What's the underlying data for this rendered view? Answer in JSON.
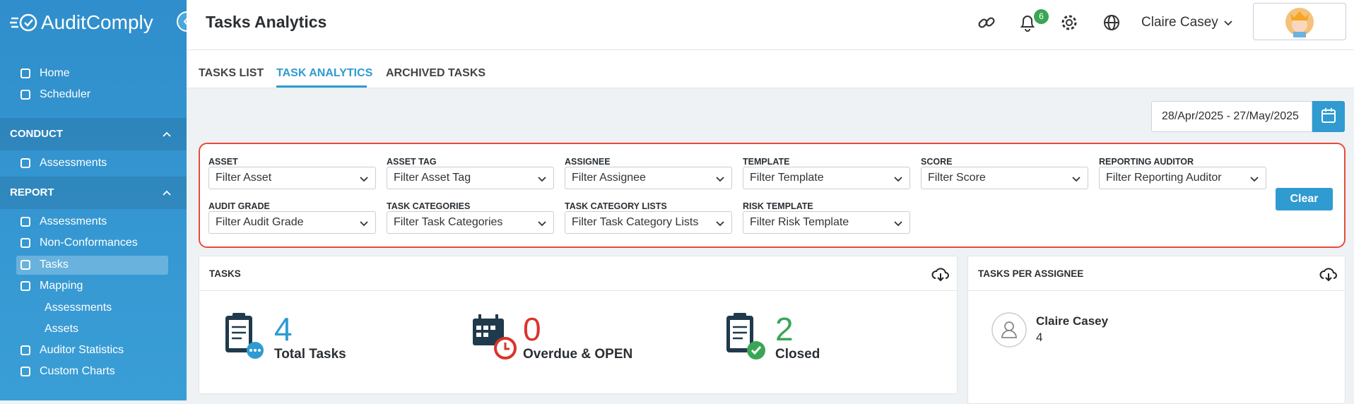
{
  "sidebar": {
    "brand": "AuditComply",
    "top": [
      "Home",
      "Scheduler"
    ],
    "sections": [
      {
        "title": "CONDUCT",
        "items": [
          {
            "label": "Assessments"
          }
        ]
      },
      {
        "title": "REPORT",
        "items": [
          {
            "label": "Assessments"
          },
          {
            "label": "Non-Conformances"
          },
          {
            "label": "Tasks"
          },
          {
            "label": "Mapping",
            "children": [
              "Assessments",
              "Assets"
            ]
          },
          {
            "label": "Auditor Statistics"
          },
          {
            "label": "Custom Charts"
          }
        ]
      }
    ]
  },
  "header": {
    "title": "Tasks Analytics",
    "notifications": "6",
    "user": "Claire Casey"
  },
  "tabs": [
    "TASKS LIST",
    "TASK ANALYTICS",
    "ARCHIVED TASKS"
  ],
  "date_range": "28/Apr/2025 - 27/May/2025",
  "filters": [
    {
      "label": "ASSET",
      "placeholder": "Filter Asset"
    },
    {
      "label": "ASSET TAG",
      "placeholder": "Filter Asset Tag"
    },
    {
      "label": "ASSIGNEE",
      "placeholder": "Filter Assignee"
    },
    {
      "label": "TEMPLATE",
      "placeholder": "Filter Template"
    },
    {
      "label": "SCORE",
      "placeholder": "Filter Score"
    },
    {
      "label": "REPORTING AUDITOR",
      "placeholder": "Filter Reporting Auditor"
    },
    {
      "label": "AUDIT GRADE",
      "placeholder": "Filter Audit Grade"
    },
    {
      "label": "TASK CATEGORIES",
      "placeholder": "Filter Task Categories"
    },
    {
      "label": "TASK CATEGORY LISTS",
      "placeholder": "Filter Task Category Lists"
    },
    {
      "label": "RISK TEMPLATE",
      "placeholder": "Filter Risk Template"
    }
  ],
  "clear_button": "Clear",
  "tasks_card": {
    "title": "TASKS",
    "stats": [
      {
        "value": "4",
        "label": "Total Tasks"
      },
      {
        "value": "0",
        "label": "Overdue & OPEN"
      },
      {
        "value": "2",
        "label": "Closed"
      }
    ]
  },
  "assignee_card": {
    "title": "TASKS PER ASSIGNEE",
    "assignees": [
      {
        "name": "Claire Casey",
        "count": "4"
      }
    ]
  }
}
